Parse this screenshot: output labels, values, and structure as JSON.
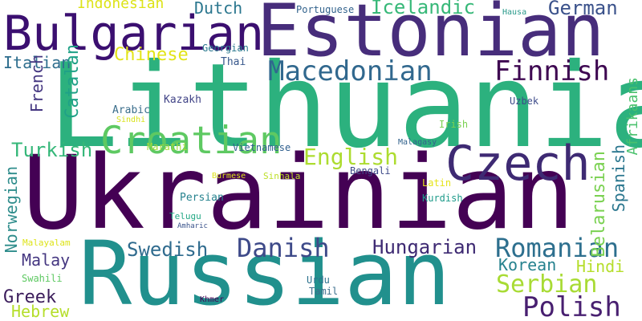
{
  "words": [
    {
      "text": "Lithuanian",
      "color": "#2cb17e"
    },
    {
      "text": "Ukrainian",
      "color": "#440154"
    },
    {
      "text": "Russian",
      "color": "#21908d"
    },
    {
      "text": "Estonian",
      "color": "#472d7b"
    },
    {
      "text": "Bulgarian",
      "color": "#3b0f70"
    },
    {
      "text": "Czech",
      "color": "#3e2a73"
    },
    {
      "text": "Croatian",
      "color": "#5ec962"
    },
    {
      "text": "Macedonian",
      "color": "#31688e"
    },
    {
      "text": "Finnish",
      "color": "#3e0751"
    },
    {
      "text": "Polish",
      "color": "#481f70"
    },
    {
      "text": "Danish",
      "color": "#3e4a89"
    },
    {
      "text": "Romanian",
      "color": "#2d6f8e"
    },
    {
      "text": "Serbian",
      "color": "#a8db34"
    },
    {
      "text": "English",
      "color": "#addc30"
    },
    {
      "text": "Hungarian",
      "color": "#3e2a73"
    },
    {
      "text": "Swedish",
      "color": "#2f6b8e"
    },
    {
      "text": "Icelandic",
      "color": "#37b878"
    },
    {
      "text": "German",
      "color": "#3b528b"
    },
    {
      "text": "Turkish",
      "color": "#35b779"
    },
    {
      "text": "Chinese",
      "color": "#e2e418"
    },
    {
      "text": "Greek",
      "color": "#3b1c5b"
    },
    {
      "text": "Hebrew",
      "color": "#b5de2b"
    },
    {
      "text": "Malay",
      "color": "#453781"
    },
    {
      "text": "Korean",
      "color": "#26828e"
    },
    {
      "text": "Hindi",
      "color": "#b5de2b"
    },
    {
      "text": "Dutch",
      "color": "#2a768e"
    },
    {
      "text": "Indonesian",
      "color": "#dde318"
    },
    {
      "text": "Italian",
      "color": "#2e6e8e"
    },
    {
      "text": "French",
      "color": "#453781"
    },
    {
      "text": "Catalan",
      "color": "#1fa187"
    },
    {
      "text": "Norwegian",
      "color": "#2f8d8c"
    },
    {
      "text": "Belarusian",
      "color": "#7ad151"
    },
    {
      "text": "Spanish",
      "color": "#2a768e"
    },
    {
      "text": "Afrikaans",
      "color": "#4ac16d"
    },
    {
      "text": "Portuguese",
      "color": "#33638d"
    },
    {
      "text": "Hausa",
      "color": "#2a9a8b"
    },
    {
      "text": "Georgian",
      "color": "#2a788e"
    },
    {
      "text": "Thai",
      "color": "#38588c"
    },
    {
      "text": "Kazakh",
      "color": "#414487"
    },
    {
      "text": "Arabic",
      "color": "#3b6e8c"
    },
    {
      "text": "Sindhi",
      "color": "#d8e219"
    },
    {
      "text": "Uzbek",
      "color": "#3e4c8a"
    },
    {
      "text": "Irish",
      "color": "#7ad151"
    },
    {
      "text": "Marathi",
      "color": "#a5db36"
    },
    {
      "text": "Vietnamese",
      "color": "#2f5f8e"
    },
    {
      "text": "Malagasy",
      "color": "#33638d"
    },
    {
      "text": "Bengali",
      "color": "#3e4a89"
    },
    {
      "text": "Burmese",
      "color": "#dde318"
    },
    {
      "text": "Sinhala",
      "color": "#bddf26"
    },
    {
      "text": "Latin",
      "color": "#e5e419"
    },
    {
      "text": "Kurdish",
      "color": "#1e9b8a"
    },
    {
      "text": "Persian",
      "color": "#26828e"
    },
    {
      "text": "Telugu",
      "color": "#22a884"
    },
    {
      "text": "Amharic",
      "color": "#3a538b"
    },
    {
      "text": "Malayalam",
      "color": "#dde318"
    },
    {
      "text": "Swahili",
      "color": "#5ec962"
    },
    {
      "text": "Urdu",
      "color": "#2c728e"
    },
    {
      "text": "Tamil",
      "color": "#3b6e8c"
    },
    {
      "text": "Khmer",
      "color": "#440154"
    }
  ]
}
